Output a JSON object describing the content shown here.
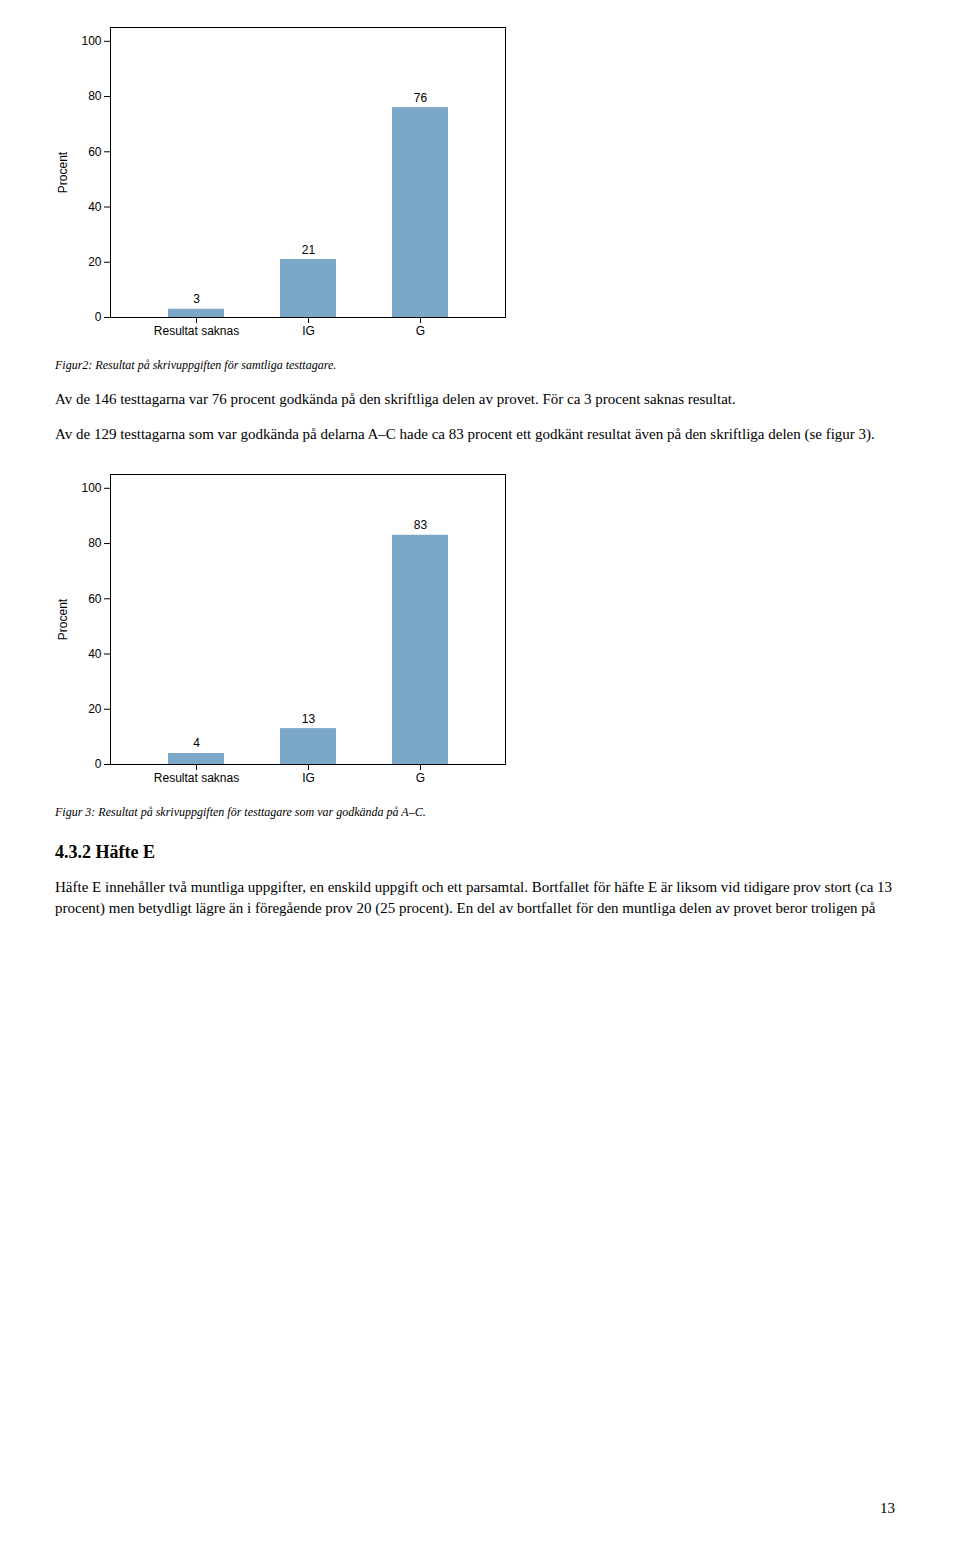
{
  "chart_data": [
    {
      "type": "bar",
      "categories": [
        "Resultat saknas",
        "IG",
        "G"
      ],
      "values": [
        3,
        21,
        76
      ],
      "color": "#7BA7C9",
      "ylabel": "Procent",
      "ylim": [
        0,
        105
      ],
      "yticks": [
        0,
        20,
        40,
        60,
        80,
        100
      ],
      "grid": false,
      "data_labels": true,
      "caption": "Figur2: Resultat på skrivuppgiften för samtliga testtagare."
    },
    {
      "type": "bar",
      "categories": [
        "Resultat saknas",
        "IG",
        "G"
      ],
      "values": [
        4,
        13,
        83
      ],
      "color": "#7BA7C9",
      "ylabel": "Procent",
      "ylim": [
        0,
        105
      ],
      "yticks": [
        0,
        20,
        40,
        60,
        80,
        100
      ],
      "grid": false,
      "data_labels": true,
      "caption": "Figur 3: Resultat på skrivuppgiften för testtagare som var godkända på A–C."
    }
  ],
  "text_blocks": [
    "Av de 146 testtagarna var 76 procent godkända på den skriftliga delen av provet. För ca 3 procent saknas resultat.",
    "Av de 129 testtagarna som var godkända på delarna A–C hade ca 83 procent ett godkänt resultat även på den skriftliga delen (se figur 3)."
  ],
  "section_title": "4.3.2 Häfte E",
  "section_text": "Häfte E innehåller två muntliga uppgifter, en enskild uppgift och ett parsamtal. Bortfallet för häfte E är liksom vid tidigare prov stort (ca 13 procent) men betydligt lägre än i föregående prov 20 (25 procent). En del av bortfallet för den muntliga delen av provet beror troligen på",
  "page_number": "13"
}
